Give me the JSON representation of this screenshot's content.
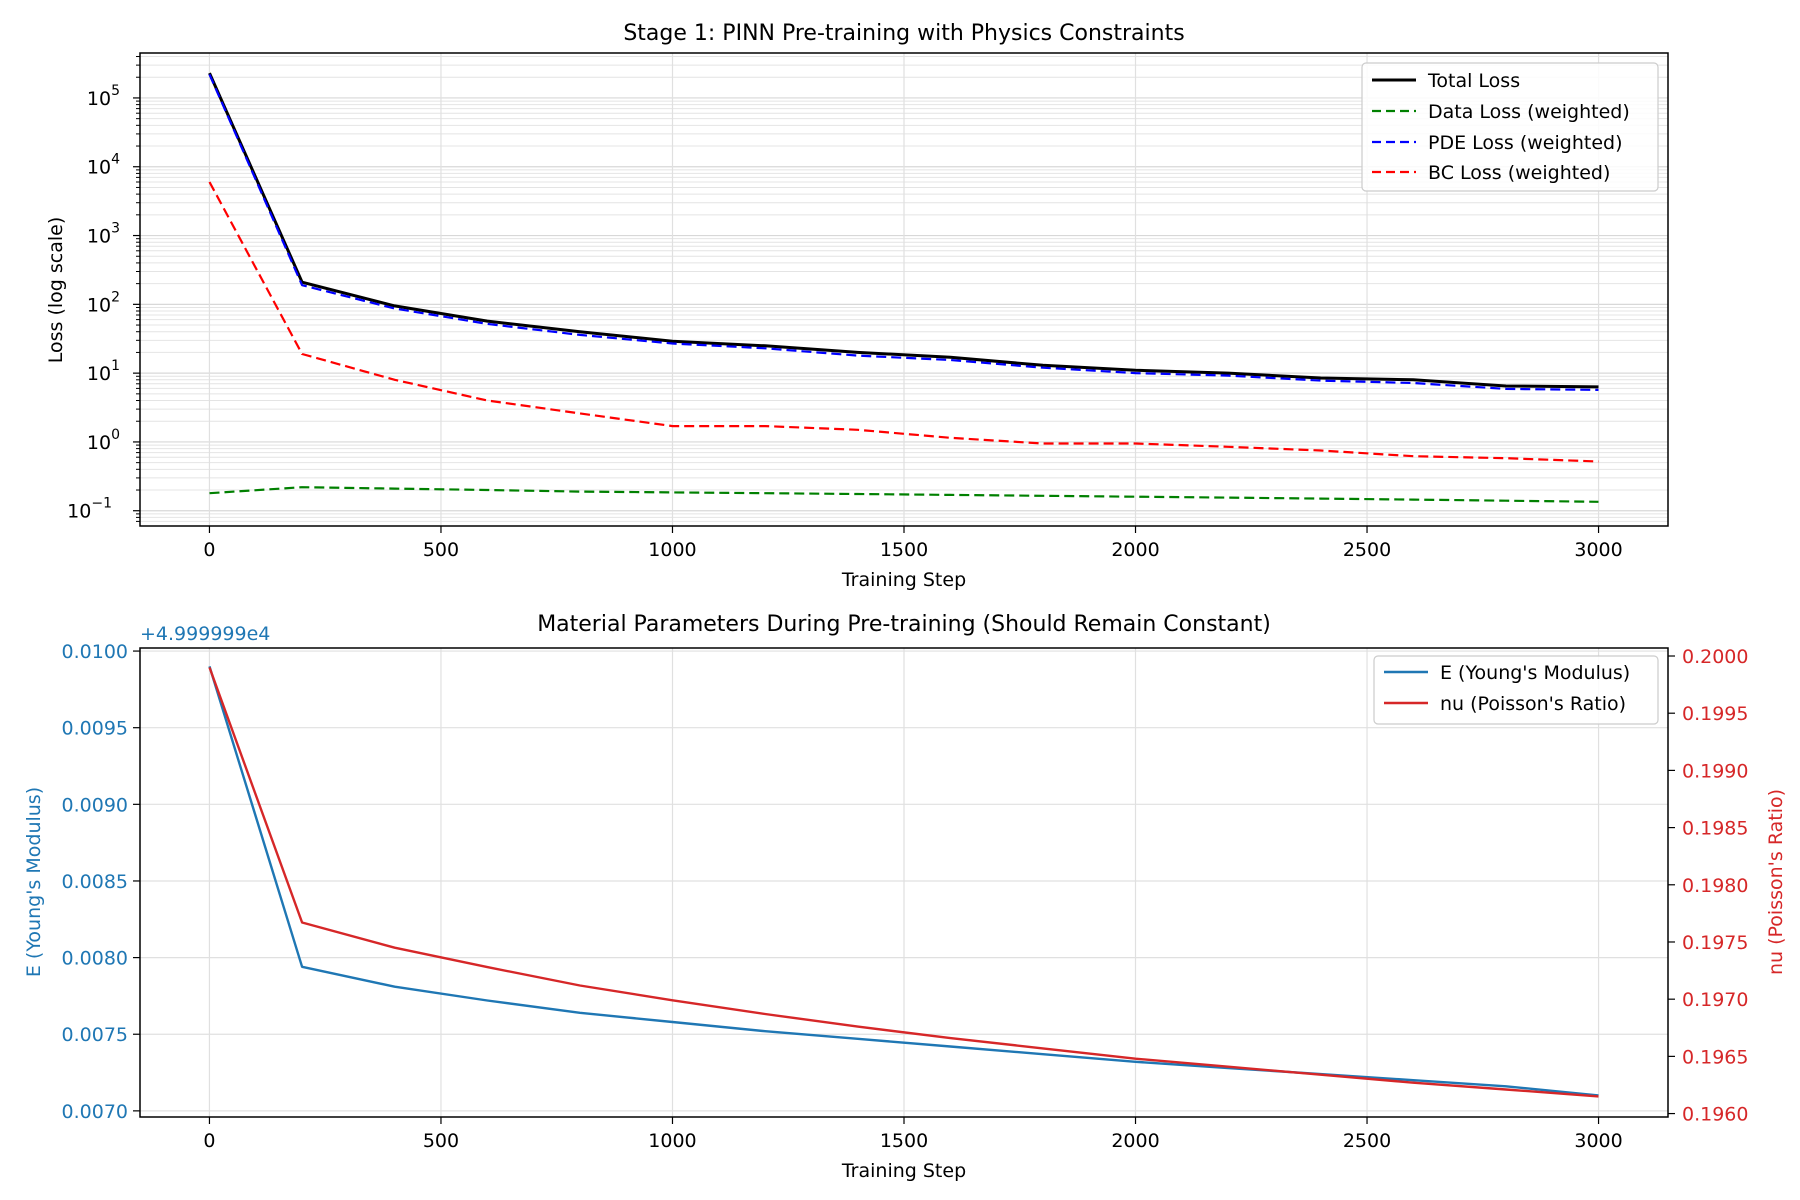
{
  "chart_data": [
    {
      "type": "line",
      "title": "Stage 1: PINN Pre-training with Physics Constraints",
      "xlabel": "Training Step",
      "ylabel": "Loss (log scale)",
      "yscale": "log",
      "x": [
        0,
        200,
        400,
        600,
        800,
        1000,
        1200,
        1400,
        1600,
        1800,
        2000,
        2200,
        2400,
        2600,
        2800,
        3000
      ],
      "xlim": [
        -150,
        3150
      ],
      "ylim": [
        0.06,
        450000
      ],
      "xticks": [
        0,
        500,
        1000,
        1500,
        2000,
        2500,
        3000
      ],
      "yticks": [
        {
          "value": 0.1,
          "base": "10",
          "exp": "−1"
        },
        {
          "value": 1,
          "base": "10",
          "exp": "0"
        },
        {
          "value": 10,
          "base": "10",
          "exp": "1"
        },
        {
          "value": 100,
          "base": "10",
          "exp": "2"
        },
        {
          "value": 1000,
          "base": "10",
          "exp": "3"
        },
        {
          "value": 10000,
          "base": "10",
          "exp": "4"
        },
        {
          "value": 100000,
          "base": "10",
          "exp": "5"
        }
      ],
      "grid": true,
      "legend_position": "top-right",
      "series": [
        {
          "name": "Total Loss",
          "color": "#000000",
          "style": "solid",
          "width": 3,
          "values": [
            230000,
            210,
            95,
            57,
            40,
            29,
            25,
            20,
            17,
            13,
            11,
            10,
            8.5,
            8,
            6.5,
            6.3
          ]
        },
        {
          "name": "Data Loss (weighted)",
          "color": "#008000",
          "style": "dashed",
          "width": 2.2,
          "values": [
            0.18,
            0.22,
            0.21,
            0.2,
            0.19,
            0.185,
            0.18,
            0.175,
            0.17,
            0.165,
            0.16,
            0.155,
            0.15,
            0.145,
            0.14,
            0.135
          ]
        },
        {
          "name": "PDE Loss (weighted)",
          "color": "#0000ff",
          "style": "dashed",
          "width": 2.2,
          "values": [
            220000,
            190,
            87,
            52,
            36,
            27,
            23,
            18,
            15.5,
            12,
            10,
            9.2,
            7.8,
            7.2,
            5.9,
            5.7
          ]
        },
        {
          "name": "BC Loss (weighted)",
          "color": "#ff0000",
          "style": "dashed",
          "width": 2.2,
          "values": [
            6000,
            19,
            8,
            4,
            2.6,
            1.7,
            1.7,
            1.5,
            1.15,
            0.95,
            0.95,
            0.85,
            0.75,
            0.62,
            0.58,
            0.52
          ]
        }
      ]
    },
    {
      "type": "line",
      "title": "Material Parameters During Pre-training (Should Remain Constant)",
      "xlabel": "Training Step",
      "ylabel_left": "E (Young's Modulus)",
      "ylabel_right": "nu (Poisson's Ratio)",
      "offset_label": "+4.999999e4",
      "x": [
        0,
        200,
        400,
        600,
        800,
        1000,
        1200,
        1400,
        1600,
        1800,
        2000,
        2200,
        2400,
        2600,
        2800,
        3000
      ],
      "xlim": [
        -150,
        3150
      ],
      "xticks": [
        0,
        500,
        1000,
        1500,
        2000,
        2500,
        3000
      ],
      "ylim_left": [
        0.00696,
        0.01002
      ],
      "yticks_left": [
        "0.0070",
        "0.0075",
        "0.0080",
        "0.0085",
        "0.0090",
        "0.0095",
        "0.0100"
      ],
      "ylim_right": [
        0.19597,
        0.20007
      ],
      "yticks_right": [
        "0.1960",
        "0.1965",
        "0.1970",
        "0.1975",
        "0.1980",
        "0.1985",
        "0.1990",
        "0.1995",
        "0.2000"
      ],
      "left_axis_color": "#1f77b4",
      "right_axis_color": "#d62728",
      "grid": true,
      "legend_position": "top-right",
      "series": [
        {
          "name": "E (Young's Modulus)",
          "axis": "left",
          "color": "#1f77b4",
          "values": [
            0.0099,
            0.00794,
            0.00781,
            0.00772,
            0.00764,
            0.00758,
            0.00752,
            0.00747,
            0.00742,
            0.00737,
            0.00732,
            0.00728,
            0.00724,
            0.0072,
            0.00716,
            0.0071
          ]
        },
        {
          "name": "nu (Poisson's Ratio)",
          "axis": "right",
          "color": "#d62728",
          "values": [
            0.1999,
            0.19767,
            0.19745,
            0.19728,
            0.19712,
            0.19699,
            0.19687,
            0.19676,
            0.19666,
            0.19657,
            0.19648,
            0.19641,
            0.19634,
            0.19627,
            0.19621,
            0.19615
          ]
        }
      ]
    }
  ]
}
